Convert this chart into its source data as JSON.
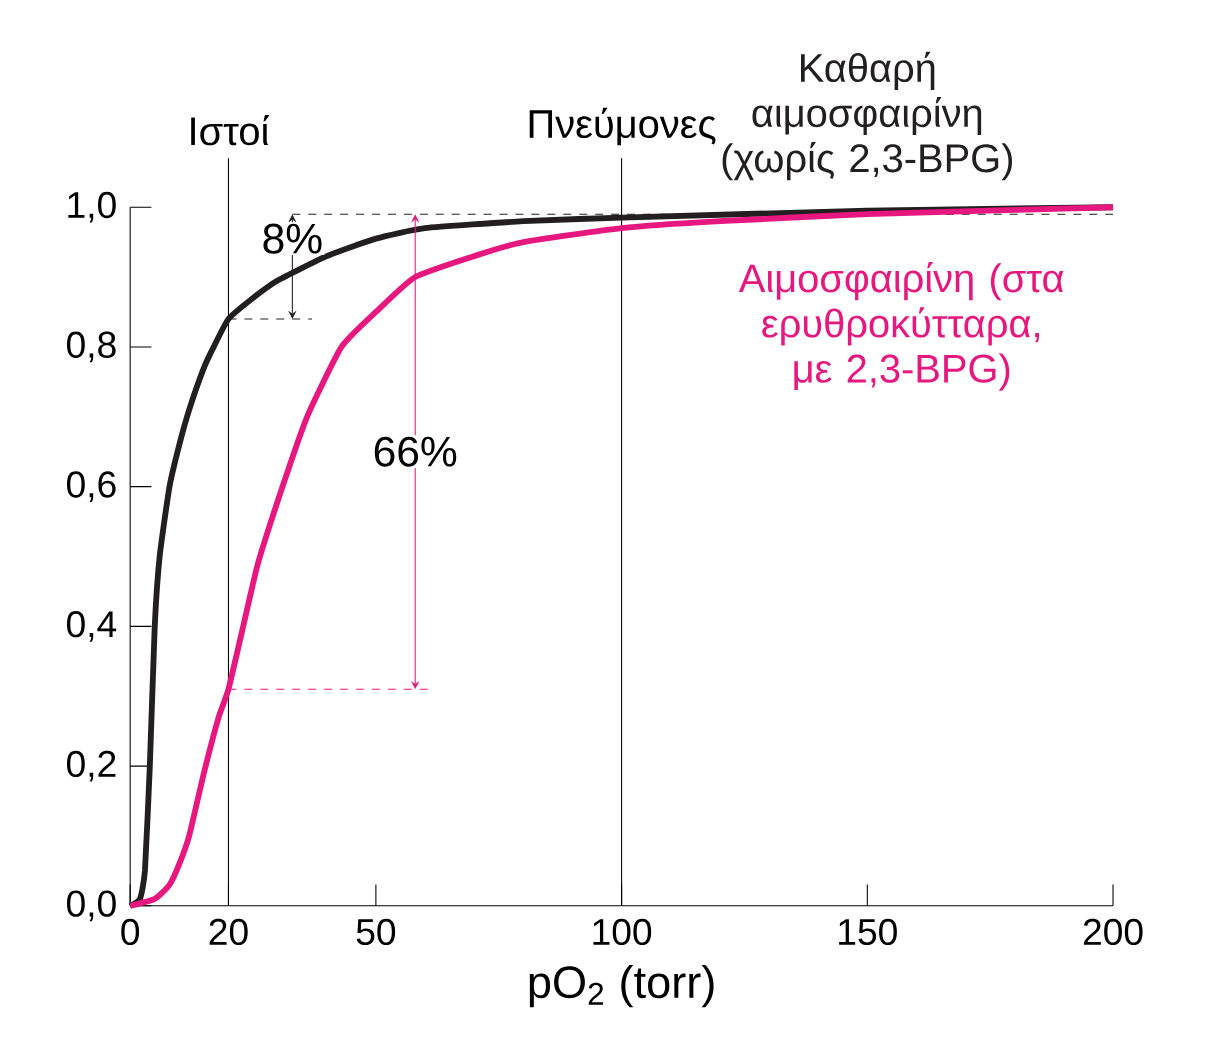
{
  "chart_data": {
    "type": "line",
    "xlabel": "pO$_{2}$ (torr)",
    "xlim": [
      0,
      200
    ],
    "ylim": [
      0,
      1
    ],
    "xticks": [
      0,
      20,
      50,
      100,
      150,
      200
    ],
    "yticks": [
      {
        "value": 0,
        "label": "0,0"
      },
      {
        "value": 0.2,
        "label": "0,2"
      },
      {
        "value": 0.4,
        "label": "0,4"
      },
      {
        "value": 0.6,
        "label": "0,6"
      },
      {
        "value": 0.8,
        "label": "0,8"
      },
      {
        "value": 1,
        "label": "1,0"
      }
    ],
    "series": [
      {
        "name": "Καθαρή αιμοσφαιρίνη (χωρίς 2,3-BPG)",
        "color": "#231f20",
        "x": [
          0,
          2,
          3,
          4,
          5,
          6,
          8,
          10,
          12,
          15,
          17,
          20,
          25,
          30,
          40,
          50,
          60,
          80,
          100,
          150,
          200
        ],
        "values": [
          0,
          0.01,
          0.05,
          0.2,
          0.4,
          0.5,
          0.6,
          0.66,
          0.71,
          0.77,
          0.8,
          0.84,
          0.87,
          0.895,
          0.93,
          0.955,
          0.97,
          0.98,
          0.985,
          0.995,
          1.0
        ]
      },
      {
        "name": "Αιμοσφαιρίνη (στα ερυθροκύτταρα, με 2,3-BPG)",
        "color": "#e6177f",
        "x": [
          0,
          5,
          8,
          10,
          12,
          15,
          18,
          20,
          23,
          26,
          31,
          36,
          43,
          50,
          58,
          70,
          80,
          100,
          120,
          150,
          200
        ],
        "values": [
          0,
          0.01,
          0.03,
          0.06,
          0.1,
          0.19,
          0.27,
          0.31,
          0.4,
          0.49,
          0.6,
          0.7,
          0.8,
          0.85,
          0.9,
          0.93,
          0.95,
          0.97,
          0.98,
          0.99,
          1.0
        ]
      }
    ],
    "ref_lines": [
      {
        "axis": "x",
        "value": 20,
        "label": "Ιστοί"
      },
      {
        "axis": "x",
        "value": 100,
        "label": "Πνεύμονες"
      },
      {
        "axis": "y",
        "value": 0.99,
        "line_style": "dashed",
        "color": "#231f20"
      },
      {
        "axis": "y",
        "value": 0.84,
        "line_style": "dashed",
        "color": "#231f20"
      },
      {
        "axis": "y",
        "value": 0.31,
        "line_style": "dashed",
        "color": "#e6177f"
      }
    ],
    "annotations": [
      {
        "text": "8%",
        "x": 33,
        "y": 0.84
      },
      "66%"
    ],
    "marker": "none",
    "line_style": "solid"
  }
}
